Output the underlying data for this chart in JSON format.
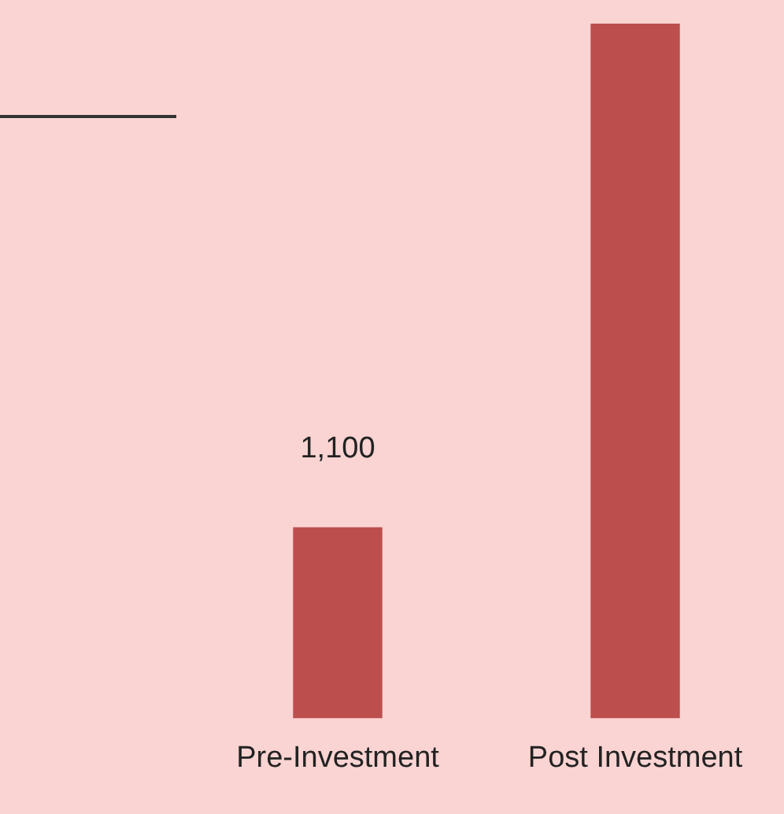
{
  "chart_data": {
    "type": "bar",
    "categories": [
      "Pre-Investment",
      "Post Investment"
    ],
    "values": [
      1100,
      4000
    ],
    "value_labels": [
      "1,100",
      null
    ],
    "color": "#bc4e4e",
    "legend": false,
    "tick_labels": "x"
  }
}
